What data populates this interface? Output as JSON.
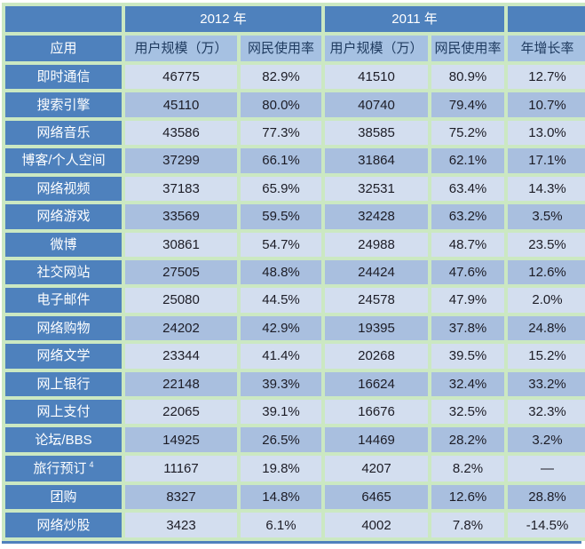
{
  "chart_data": {
    "type": "table",
    "year_headers": [
      "2012 年",
      "2011 年"
    ],
    "columns": [
      "应用",
      "用户规模（万）",
      "网民使用率",
      "用户规模（万）",
      "网民使用率",
      "年增长率"
    ],
    "rows": [
      {
        "label": "即时通信",
        "cells": [
          "46775",
          "82.9%",
          "41510",
          "80.9%",
          "12.7%"
        ]
      },
      {
        "label": "搜索引擎",
        "cells": [
          "45110",
          "80.0%",
          "40740",
          "79.4%",
          "10.7%"
        ]
      },
      {
        "label": "网络音乐",
        "cells": [
          "43586",
          "77.3%",
          "38585",
          "75.2%",
          "13.0%"
        ]
      },
      {
        "label": "博客/个人空间",
        "cells": [
          "37299",
          "66.1%",
          "31864",
          "62.1%",
          "17.1%"
        ]
      },
      {
        "label": "网络视频",
        "cells": [
          "37183",
          "65.9%",
          "32531",
          "63.4%",
          "14.3%"
        ]
      },
      {
        "label": "网络游戏",
        "cells": [
          "33569",
          "59.5%",
          "32428",
          "63.2%",
          "3.5%"
        ]
      },
      {
        "label": "微博",
        "cells": [
          "30861",
          "54.7%",
          "24988",
          "48.7%",
          "23.5%"
        ]
      },
      {
        "label": "社交网站",
        "cells": [
          "27505",
          "48.8%",
          "24424",
          "47.6%",
          "12.6%"
        ]
      },
      {
        "label": "电子邮件",
        "cells": [
          "25080",
          "44.5%",
          "24578",
          "47.9%",
          "2.0%"
        ]
      },
      {
        "label": "网络购物",
        "cells": [
          "24202",
          "42.9%",
          "19395",
          "37.8%",
          "24.8%"
        ]
      },
      {
        "label": "网络文学",
        "cells": [
          "23344",
          "41.4%",
          "20268",
          "39.5%",
          "15.2%"
        ]
      },
      {
        "label": "网上银行",
        "cells": [
          "22148",
          "39.3%",
          "16624",
          "32.4%",
          "33.2%"
        ]
      },
      {
        "label": "网上支付",
        "cells": [
          "22065",
          "39.1%",
          "16676",
          "32.5%",
          "32.3%"
        ]
      },
      {
        "label": "论坛/BBS",
        "cells": [
          "14925",
          "26.5%",
          "14469",
          "28.2%",
          "3.2%"
        ]
      },
      {
        "label": "旅行预订",
        "label_sup": "4",
        "cells": [
          "11167",
          "19.8%",
          "4207",
          "8.2%",
          "—"
        ]
      },
      {
        "label": "团购",
        "cells": [
          "8327",
          "14.8%",
          "6465",
          "12.6%",
          "28.8%"
        ]
      },
      {
        "label": "网络炒股",
        "cells": [
          "3423",
          "6.1%",
          "4002",
          "7.8%",
          "-14.5%"
        ]
      }
    ]
  },
  "colors": {
    "header_blue": "#4e81bd",
    "subheader_blue": "#a6c1e2",
    "band_light": "#d3deef",
    "band_medium": "#a9bfdf",
    "border_green": "#cbe8c2",
    "header_text": "#ffffff",
    "subheader_text": "#1e3a5f",
    "cell_text": "#1c1c26"
  }
}
